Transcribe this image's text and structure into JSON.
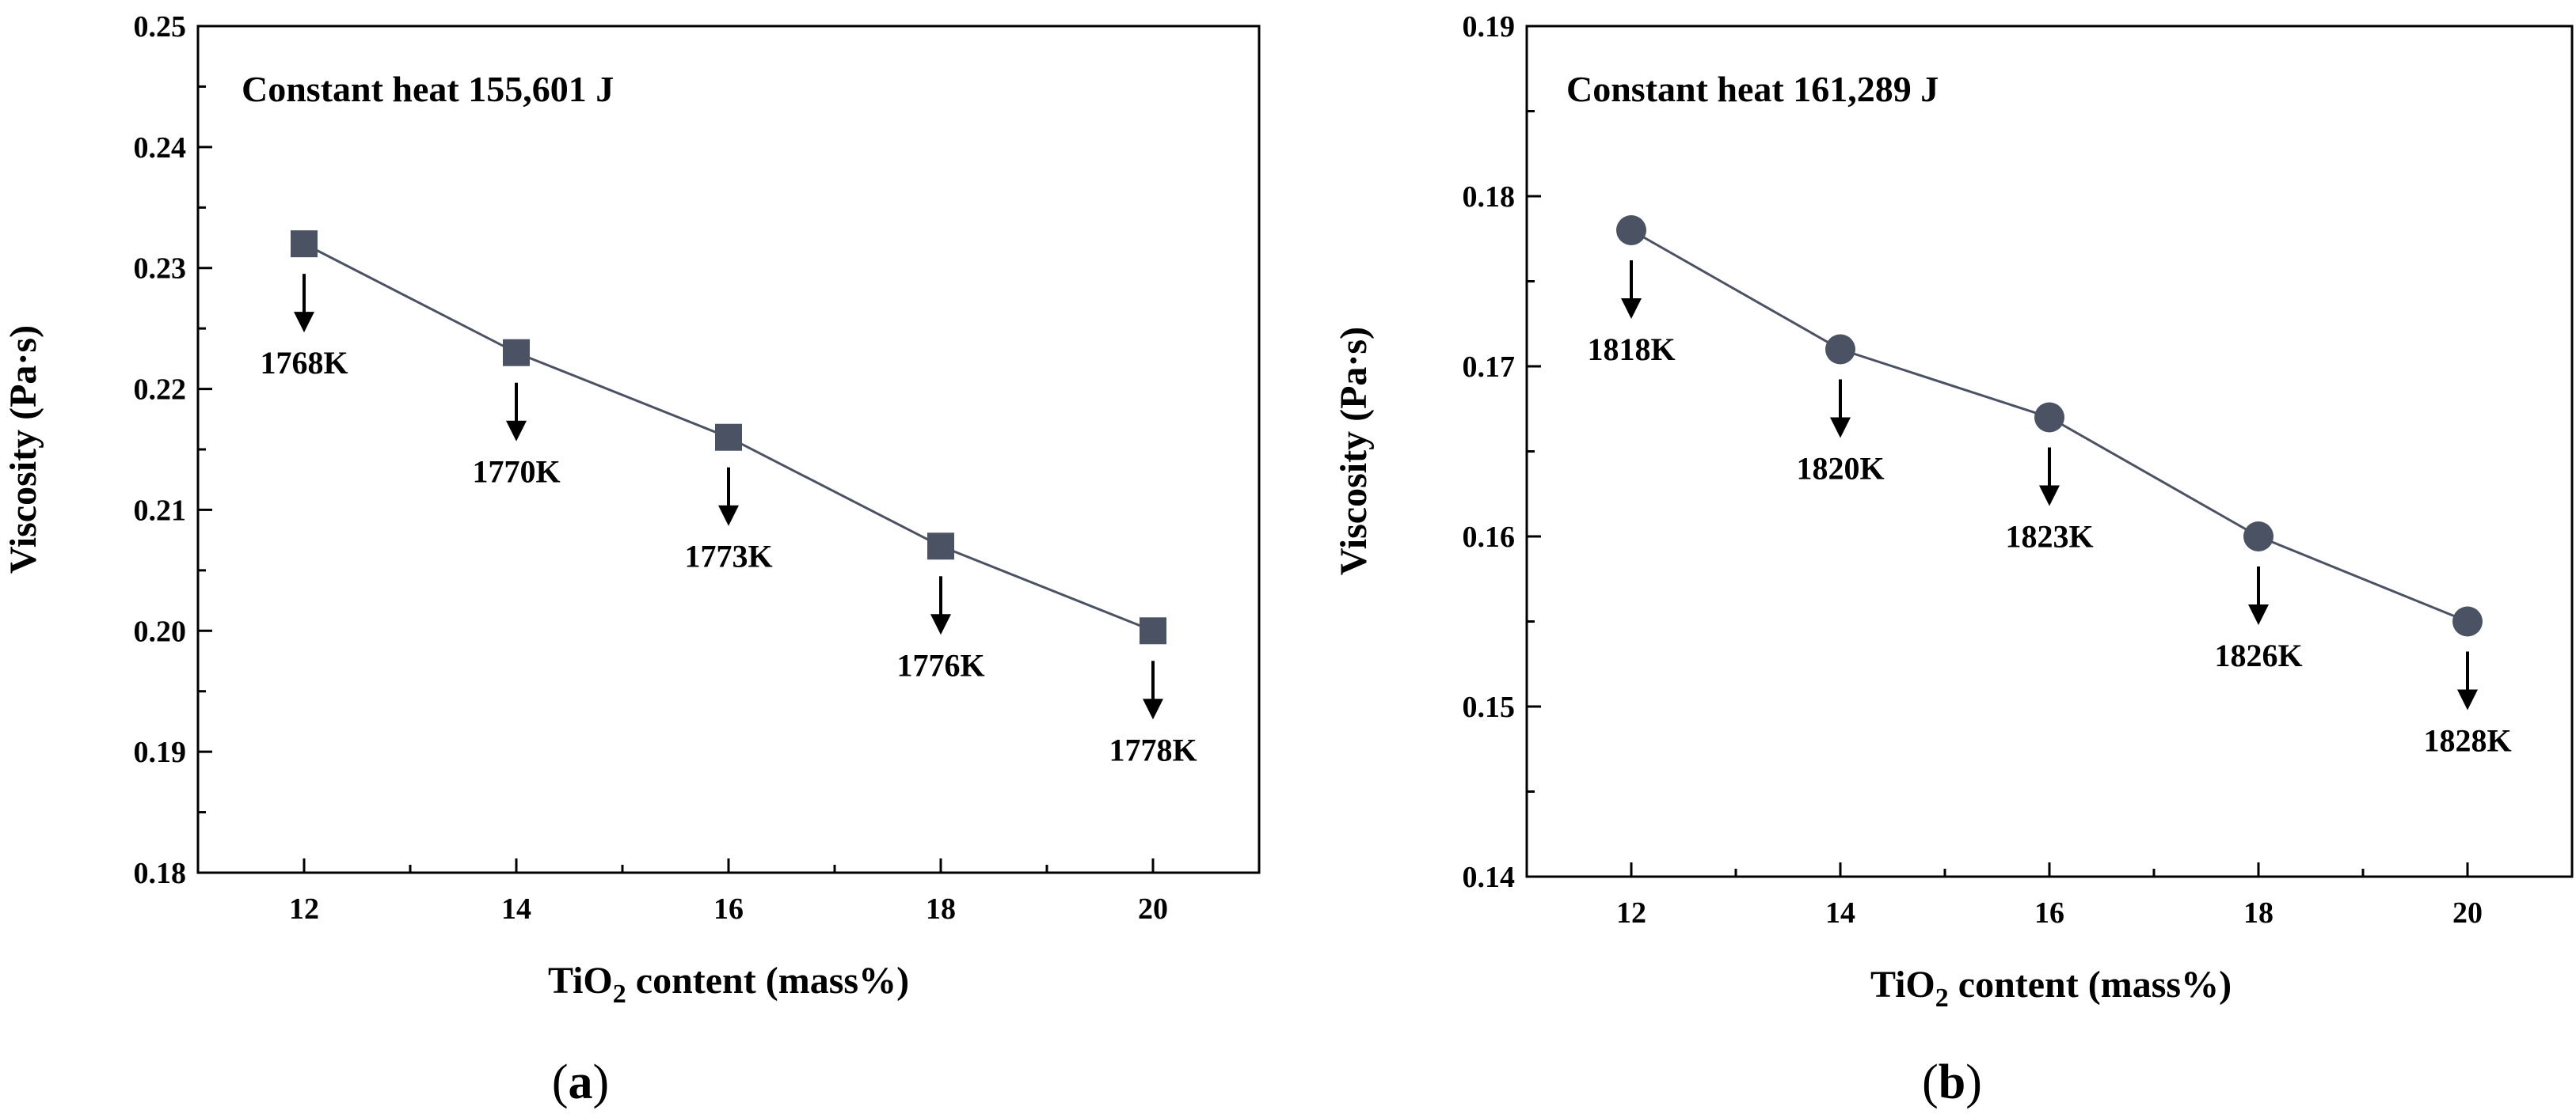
{
  "chart_data": [
    {
      "type": "line",
      "panel": "a",
      "caption": "(a)",
      "caption_letter": "a",
      "title": "Constant heat 155,601 J",
      "xlabel_main": "TiO",
      "xlabel_sub": "2",
      "xlabel_rest": " content (mass%)",
      "ylabel": "Viscosity (Pa·s)",
      "marker": "square",
      "color": "#4a5263",
      "xlim": [
        11,
        21
      ],
      "ylim": [
        0.18,
        0.25
      ],
      "xticks": [
        12,
        14,
        16,
        18,
        20
      ],
      "xtick_labels": [
        "12",
        "14",
        "16",
        "18",
        "20"
      ],
      "yticks": [
        0.18,
        0.19,
        0.2,
        0.21,
        0.22,
        0.23,
        0.24,
        0.25
      ],
      "ytick_labels": [
        "0.18",
        "0.19",
        "0.20",
        "0.21",
        "0.22",
        "0.23",
        "0.24",
        "0.25"
      ],
      "x": [
        12,
        14,
        16,
        18,
        20
      ],
      "y": [
        0.232,
        0.223,
        0.216,
        0.207,
        0.2
      ],
      "annotations": [
        "1768K",
        "1770K",
        "1773K",
        "1776K",
        "1778K"
      ]
    },
    {
      "type": "line",
      "panel": "b",
      "caption": "(b)",
      "caption_letter": "b",
      "title": "Constant heat 161,289 J",
      "xlabel_main": "TiO",
      "xlabel_sub": "2",
      "xlabel_rest": " content (mass%)",
      "ylabel": "Viscosity (Pa·s)",
      "marker": "circle",
      "color": "#4a5263",
      "xlim": [
        11,
        21
      ],
      "ylim": [
        0.14,
        0.19
      ],
      "xticks": [
        12,
        14,
        16,
        18,
        20
      ],
      "xtick_labels": [
        "12",
        "14",
        "16",
        "18",
        "20"
      ],
      "yticks": [
        0.14,
        0.15,
        0.16,
        0.17,
        0.18,
        0.19
      ],
      "ytick_labels": [
        "0.14",
        "0.15",
        "0.16",
        "0.17",
        "0.18",
        "0.19"
      ],
      "x": [
        12,
        14,
        16,
        18,
        20
      ],
      "y": [
        0.178,
        0.171,
        0.167,
        0.16,
        0.155
      ],
      "annotations": [
        "1818K",
        "1820K",
        "1823K",
        "1826K",
        "1828K"
      ]
    }
  ]
}
